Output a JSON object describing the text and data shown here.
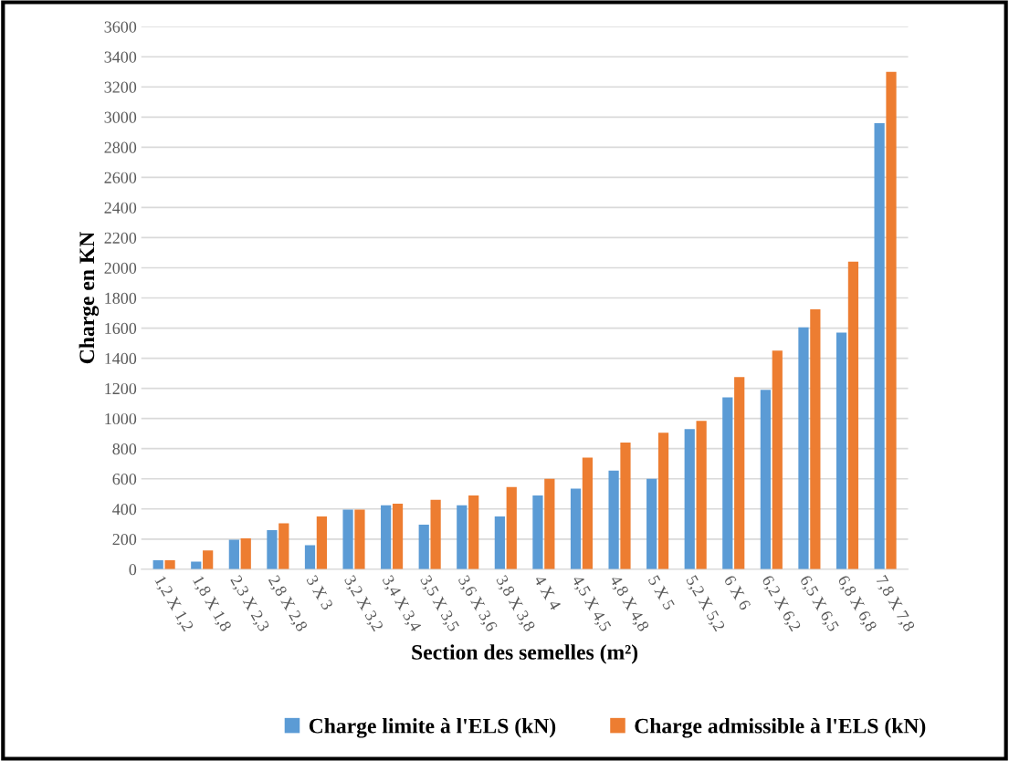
{
  "chart_data": {
    "type": "bar",
    "xlabel": "Section des semelles (m²)",
    "ylabel": "Charge en KN",
    "categories": [
      "1,2 X 1,2",
      "1,8 X 1,8",
      "2,3 X 2,3",
      "2,8 X 2,8",
      "3 X 3",
      "3,2 X 3,2",
      "3,4 X 3,4",
      "3,5 X 3,5",
      "3,6 X 3,6",
      "3,8 X 3,8",
      "4 X 4",
      "4,5 X 4,5",
      "4,8 X 4,8",
      "5 X 5",
      "5,2 X 5,2",
      "6 X 6",
      "6,2 X 6,2",
      "6,5 X 6,5",
      "6,8 X 6,8",
      "7,8 X 7,8"
    ],
    "series": [
      {
        "name": "Charge limite à l'ELS (kN)",
        "color": "#5b9bd5",
        "values": [
          60,
          50,
          195,
          260,
          160,
          395,
          425,
          295,
          425,
          350,
          490,
          535,
          655,
          600,
          930,
          1140,
          1190,
          1605,
          1570,
          2960
        ]
      },
      {
        "name": "Charge admissible à l'ELS (kN)",
        "color": "#ed7d31",
        "values": [
          60,
          125,
          205,
          305,
          350,
          395,
          435,
          460,
          490,
          545,
          600,
          740,
          840,
          905,
          985,
          1275,
          1450,
          1725,
          2040,
          3300
        ]
      }
    ],
    "ylim": [
      0,
      3600
    ],
    "yticks": [
      0,
      200,
      400,
      600,
      800,
      1000,
      1200,
      1400,
      1600,
      1800,
      2000,
      2200,
      2400,
      2600,
      2800,
      3000,
      3200,
      3400,
      3600
    ],
    "grid": "y",
    "legend": "bottom"
  }
}
